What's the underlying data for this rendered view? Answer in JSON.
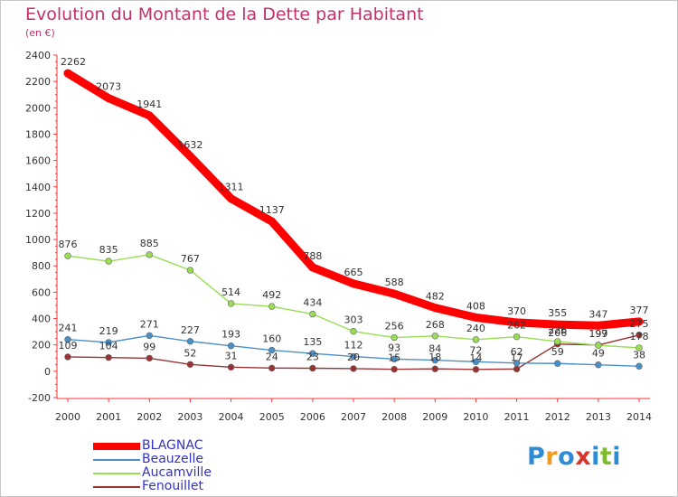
{
  "title": "Evolution du Montant de la Dette par Habitant",
  "subtitle": "(en €)",
  "logo": {
    "text": "Proxiti",
    "colors": [
      "#2e8bd6",
      "#f29a1f",
      "#2e8bd6",
      "#d8352b",
      "#2e8bd6",
      "#7dbb2a",
      "#2e8bd6"
    ]
  },
  "chart_data": {
    "type": "line",
    "x": [
      "2000",
      "2001",
      "2002",
      "2003",
      "2004",
      "2005",
      "2006",
      "2007",
      "2008",
      "2009",
      "2010",
      "2011",
      "2012",
      "2013",
      "2014"
    ],
    "ylim": [
      -200,
      2400
    ],
    "yticks": [
      "-200",
      "0",
      "200",
      "400",
      "600",
      "800",
      "1000",
      "1200",
      "1400",
      "1600",
      "1800",
      "2000",
      "2200",
      "2400"
    ],
    "grid": false,
    "legend_position": "bottom-left",
    "series": [
      {
        "name": "BLAGNAC",
        "color": "#ff0000",
        "values": [
          2262,
          2073,
          1941,
          1632,
          1311,
          1137,
          788,
          665,
          588,
          482,
          408,
          370,
          355,
          347,
          377
        ],
        "labels": [
          "2262",
          "2073",
          "1941",
          "1632",
          "1311",
          "1137",
          "788",
          "665",
          "588",
          "482",
          "408",
          "370",
          "355",
          "347",
          "377"
        ]
      },
      {
        "name": "Beauzelle",
        "color": "#4a90c8",
        "values": [
          241,
          219,
          271,
          227,
          193,
          160,
          135,
          112,
          93,
          84,
          72,
          62,
          59,
          49,
          38
        ],
        "labels": [
          "241",
          "219",
          "271",
          "227",
          "193",
          "160",
          "135",
          "112",
          "93",
          "84",
          "72",
          "62",
          "59",
          "49",
          "38"
        ]
      },
      {
        "name": "Aucamville",
        "color": "#99dd55",
        "values": [
          876,
          835,
          885,
          767,
          514,
          492,
          434,
          303,
          256,
          268,
          240,
          262,
          226,
          197,
          178
        ],
        "labels": [
          "876",
          "835",
          "885",
          "767",
          "514",
          "492",
          "434",
          "303",
          "256",
          "268",
          "240",
          "262",
          "226",
          "197",
          "178"
        ]
      },
      {
        "name": "Fenouillet",
        "color": "#993333",
        "values": [
          109,
          104,
          99,
          52,
          31,
          24,
          23,
          20,
          15,
          18,
          14,
          17,
          206,
          199,
          275
        ],
        "labels": [
          "109",
          "104",
          "99",
          "52",
          "31",
          "24",
          "23",
          "20",
          "15",
          "18",
          "14",
          "17",
          "206",
          "199",
          "275"
        ]
      }
    ]
  }
}
